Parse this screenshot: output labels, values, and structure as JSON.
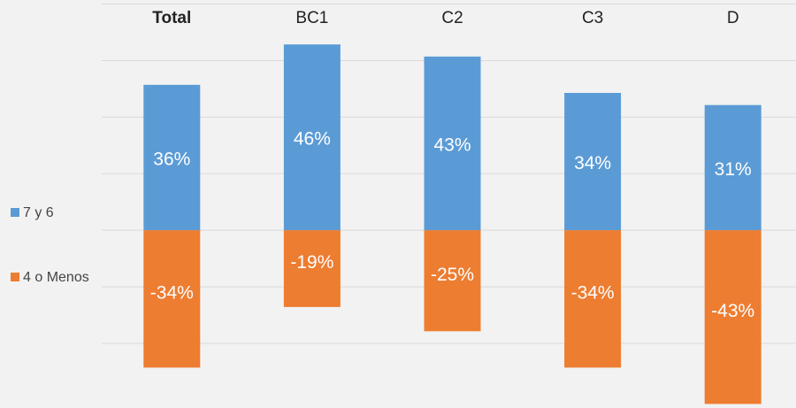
{
  "chart_data": {
    "type": "bar",
    "categories": [
      "Total",
      "BC1",
      "C2",
      "C3",
      "D"
    ],
    "series": [
      {
        "name": "7 y 6",
        "color": "#5b9bd5",
        "values": [
          36,
          46,
          43,
          34,
          31
        ],
        "value_labels": [
          "36%",
          "46%",
          "43%",
          "34%",
          "31%"
        ]
      },
      {
        "name": "4 o Menos",
        "color": "#ed7d31",
        "values": [
          -34,
          -19,
          -25,
          -34,
          -43
        ],
        "value_labels": [
          "-34%",
          "-19%",
          "-25%",
          "-34%",
          "-43%"
        ]
      }
    ],
    "ylim": [
      -44,
      57
    ],
    "yticks": [
      -28,
      -14,
      0,
      14,
      28,
      42,
      56
    ],
    "grid": true,
    "legend": "left"
  }
}
